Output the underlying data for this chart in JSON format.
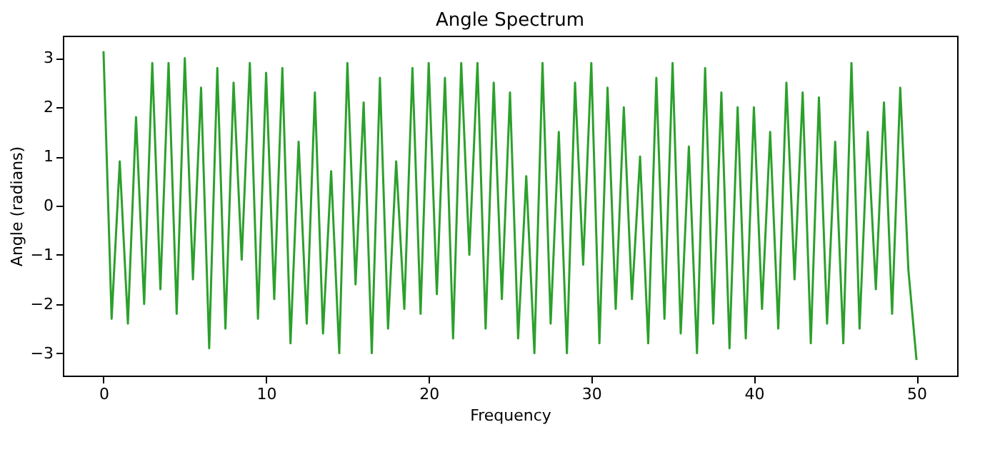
{
  "chart_data": {
    "type": "line",
    "title": "Angle Spectrum",
    "xlabel": "Frequency",
    "ylabel": "Angle (radians)",
    "x": [
      0,
      0.5,
      1,
      1.5,
      2,
      2.5,
      3,
      3.5,
      4,
      4.5,
      5,
      5.5,
      6,
      6.5,
      7,
      7.5,
      8,
      8.5,
      9,
      9.5,
      10,
      10.5,
      11,
      11.5,
      12,
      12.5,
      13,
      13.5,
      14,
      14.5,
      15,
      15.5,
      16,
      16.5,
      17,
      17.5,
      18,
      18.5,
      19,
      19.5,
      20,
      20.5,
      21,
      21.5,
      22,
      22.5,
      23,
      23.5,
      24,
      24.5,
      25,
      25.5,
      26,
      26.5,
      27,
      27.5,
      28,
      28.5,
      29,
      29.5,
      30,
      30.5,
      31,
      31.5,
      32,
      32.5,
      33,
      33.5,
      34,
      34.5,
      35,
      35.5,
      36,
      36.5,
      37,
      37.5,
      38,
      38.5,
      39,
      39.5,
      40,
      40.5,
      41,
      41.5,
      42,
      42.5,
      43,
      43.5,
      44,
      44.5,
      45,
      45.5,
      46,
      46.5,
      47,
      47.5,
      48,
      48.5,
      49,
      49.5,
      50
    ],
    "series": [
      {
        "color": "#2ca02c",
        "values": [
          3.14,
          -2.3,
          0.9,
          -2.4,
          1.8,
          -2.0,
          2.9,
          -1.7,
          2.9,
          -2.2,
          3.0,
          -1.5,
          2.4,
          -2.9,
          2.8,
          -2.5,
          2.5,
          -1.1,
          2.9,
          -2.3,
          2.7,
          -1.9,
          2.8,
          -2.8,
          1.3,
          -2.4,
          2.3,
          -2.6,
          0.7,
          -3.0,
          2.9,
          -1.6,
          2.1,
          -3.0,
          2.6,
          -2.5,
          0.9,
          -2.1,
          2.8,
          -2.2,
          2.9,
          -1.8,
          2.6,
          -2.7,
          2.9,
          -1.0,
          2.9,
          -2.5,
          2.5,
          -1.9,
          2.3,
          -2.7,
          0.6,
          -3.0,
          2.9,
          -2.4,
          1.5,
          -3.0,
          2.5,
          -1.2,
          2.9,
          -2.8,
          2.4,
          -2.1,
          2.0,
          -1.9,
          1.0,
          -2.8,
          2.6,
          -2.3,
          2.9,
          -2.6,
          1.2,
          -3.0,
          2.8,
          -2.4,
          2.3,
          -2.9,
          2.0,
          -2.7,
          2.0,
          -2.1,
          1.5,
          -2.5,
          2.5,
          -1.5,
          2.3,
          -2.8,
          2.2,
          -2.4,
          1.3,
          -2.8,
          2.9,
          -2.5,
          1.5,
          -1.7,
          2.1,
          -2.2,
          2.4,
          -1.3,
          -3.14
        ]
      }
    ],
    "xlim": [
      -2.5,
      52.5
    ],
    "ylim": [
      -3.456,
      3.456
    ],
    "xticks": [
      0,
      10,
      20,
      30,
      40,
      50
    ],
    "yticks": [
      -3,
      -2,
      -1,
      0,
      1,
      2,
      3
    ],
    "grid": false,
    "marker": "none",
    "line_style": "solid"
  }
}
